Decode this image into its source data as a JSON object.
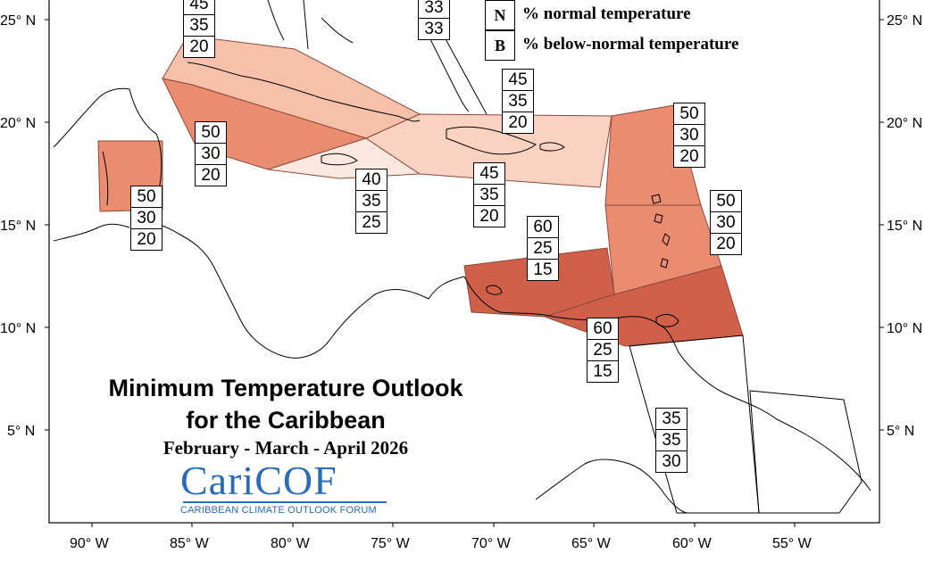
{
  "title": {
    "line1": "Minimum Temperature Outlook",
    "line2": "for the Caribbean",
    "period": "February - March - April 2026"
  },
  "logo": {
    "name": "CariCOF",
    "tagline": "CARIBBEAN CLIMATE OUTLOOK FORUM"
  },
  "legend": [
    {
      "key": "N",
      "text": "% normal temperature"
    },
    {
      "key": "B",
      "text": "% below-normal temperature"
    }
  ],
  "axes": {
    "lat_labels_left": [
      "25° N",
      "20° N",
      "15° N",
      "10° N",
      "5° N"
    ],
    "lat_labels_right": [
      "25° N",
      "20° N",
      "15° N",
      "10° N",
      "5° N"
    ],
    "lon_labels": [
      "90° W",
      "85° W",
      "80° W",
      "75° W",
      "70° W",
      "65° W",
      "60° W",
      "55° W"
    ]
  },
  "colors": {
    "above_40": "#f9d2c2",
    "above_45": "#f7c0aa",
    "above_50": "#ea8c70",
    "above_60": "#d0604a",
    "low_35": "#fde8df",
    "outline": "#8a4a3a"
  },
  "forecast_boxes": [
    {
      "values": [
        "45",
        "35",
        "20"
      ]
    },
    {
      "values": [
        "33",
        "33"
      ]
    },
    {
      "values": [
        "45",
        "35",
        "20"
      ]
    },
    {
      "values": [
        "50",
        "30",
        "20"
      ]
    },
    {
      "values": [
        "50",
        "30",
        "20"
      ]
    },
    {
      "values": [
        "50",
        "30",
        "20"
      ]
    },
    {
      "values": [
        "40",
        "35",
        "25"
      ]
    },
    {
      "values": [
        "45",
        "35",
        "20"
      ]
    },
    {
      "values": [
        "50",
        "30",
        "20"
      ]
    },
    {
      "values": [
        "60",
        "25",
        "15"
      ]
    },
    {
      "values": [
        "60",
        "25",
        "15"
      ]
    },
    {
      "values": [
        "35",
        "35",
        "30"
      ]
    }
  ]
}
